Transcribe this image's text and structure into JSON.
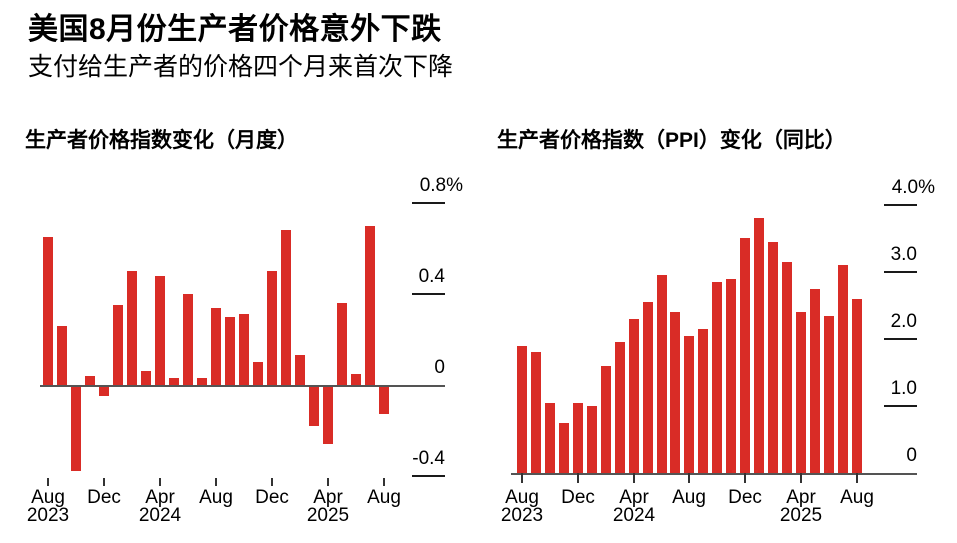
{
  "header": {
    "title": "美国8月份生产者价格意外下跌",
    "subtitle": "支付给生产者的价格四个月来首次下降"
  },
  "colors": {
    "bar": "#d92c26",
    "axis_line": "#545454",
    "tick": "#1a1a1a",
    "text": "#000000",
    "background": "#ffffff"
  },
  "chart_data": [
    {
      "type": "bar",
      "title": "生产者价格指数变化（月度）",
      "unit": "%",
      "grid": false,
      "legend": null,
      "ylim": [
        -0.45,
        0.85
      ],
      "categories": [
        "Aug 2023",
        "Sep 2023",
        "Oct 2023",
        "Nov 2023",
        "Dec 2023",
        "Jan 2024",
        "Feb 2024",
        "Mar 2024",
        "Apr 2024",
        "May 2024",
        "Jun 2024",
        "Jul 2024",
        "Aug 2024",
        "Sep 2024",
        "Oct 2024",
        "Nov 2024",
        "Dec 2024",
        "Jan 2025",
        "Feb 2025",
        "Mar 2025",
        "Apr 2025",
        "May 2025",
        "Jun 2025",
        "Jul 2025",
        "Aug 2025"
      ],
      "values": [
        0.65,
        0.26,
        -0.37,
        0.04,
        -0.04,
        0.35,
        0.5,
        0.06,
        0.48,
        0.03,
        0.4,
        0.03,
        0.34,
        0.3,
        0.31,
        0.1,
        0.5,
        0.68,
        0.13,
        -0.17,
        -0.25,
        0.36,
        0.05,
        0.7,
        -0.12
      ],
      "yticks": [
        {
          "value": 0.8,
          "label": "0.8%"
        },
        {
          "value": 0.4,
          "label": "0.4"
        },
        {
          "value": 0,
          "label": "0"
        },
        {
          "value": -0.4,
          "label": "-0.4"
        }
      ],
      "xticks": [
        {
          "index": 0,
          "label": "Aug",
          "year": "2023"
        },
        {
          "index": 4,
          "label": "Dec"
        },
        {
          "index": 8,
          "label": "Apr",
          "year": "2024"
        },
        {
          "index": 12,
          "label": "Aug"
        },
        {
          "index": 16,
          "label": "Dec"
        },
        {
          "index": 20,
          "label": "Apr",
          "year": "2025"
        },
        {
          "index": 24,
          "label": "Aug"
        }
      ]
    },
    {
      "type": "bar",
      "title": "生产者价格指数（PPI）变化（同比）",
      "unit": "%",
      "grid": false,
      "legend": null,
      "ylim": [
        0,
        4.0
      ],
      "categories": [
        "Aug 2023",
        "Sep 2023",
        "Oct 2023",
        "Nov 2023",
        "Dec 2023",
        "Jan 2024",
        "Feb 2024",
        "Mar 2024",
        "Apr 2024",
        "May 2024",
        "Jun 2024",
        "Jul 2024",
        "Aug 2024",
        "Sep 2024",
        "Oct 2024",
        "Nov 2024",
        "Dec 2024",
        "Jan 2025",
        "Feb 2025",
        "Mar 2025",
        "Apr 2025",
        "May 2025",
        "Jun 2025",
        "Jul 2025",
        "Aug 2025"
      ],
      "values": [
        1.9,
        1.8,
        1.05,
        0.75,
        1.05,
        1.0,
        1.6,
        1.95,
        2.3,
        2.55,
        2.95,
        2.4,
        2.05,
        2.15,
        2.85,
        2.9,
        3.5,
        3.8,
        3.45,
        3.15,
        2.4,
        2.75,
        2.35,
        3.1,
        2.6
      ],
      "yticks": [
        {
          "value": 4.0,
          "label": "4.0%"
        },
        {
          "value": 3.0,
          "label": "3.0"
        },
        {
          "value": 2.0,
          "label": "2.0"
        },
        {
          "value": 1.0,
          "label": "1.0"
        },
        {
          "value": 0,
          "label": "0"
        }
      ],
      "xticks": [
        {
          "index": 0,
          "label": "Aug",
          "year": "2023"
        },
        {
          "index": 4,
          "label": "Dec"
        },
        {
          "index": 8,
          "label": "Apr",
          "year": "2024"
        },
        {
          "index": 12,
          "label": "Aug"
        },
        {
          "index": 16,
          "label": "Dec"
        },
        {
          "index": 20,
          "label": "Apr",
          "year": "2025"
        },
        {
          "index": 24,
          "label": "Aug"
        }
      ]
    }
  ]
}
